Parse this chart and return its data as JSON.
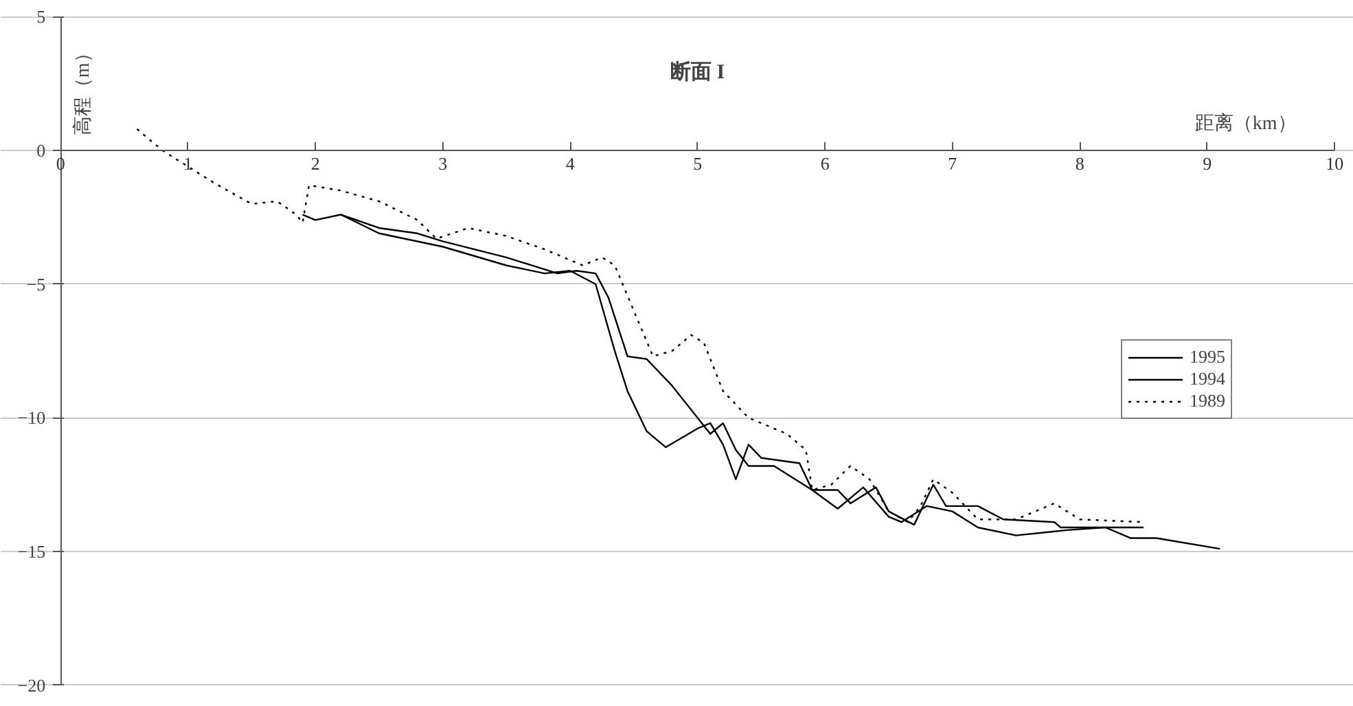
{
  "chart_data": {
    "type": "line",
    "title": "断面 I",
    "xlabel": "距离（km）",
    "ylabel": "高程（m）",
    "xlim": [
      0,
      10
    ],
    "xticks": [
      0,
      1,
      2,
      3,
      4,
      5,
      6,
      7,
      8,
      9,
      10
    ],
    "ylim": [
      -20,
      5
    ],
    "yticks": [
      -20,
      -15,
      -10,
      -5,
      0,
      5
    ],
    "grid": "y",
    "legend": "right",
    "marker": "none",
    "series": [
      {
        "name": "1995",
        "color": "#000000",
        "line_style": "solid",
        "x": [
          1.9,
          2.0,
          2.2,
          2.5,
          2.8,
          3.0,
          3.5,
          3.9,
          4.05,
          4.2,
          4.3,
          4.45,
          4.6,
          4.8,
          5.0,
          5.1,
          5.2,
          5.3,
          5.4,
          5.6,
          5.9,
          6.1,
          6.3,
          6.5,
          6.6,
          6.8,
          7.0,
          7.2,
          7.5,
          7.9,
          8.2,
          8.4,
          8.6,
          9.1
        ],
        "values": [
          -2.4,
          -2.6,
          -2.4,
          -2.9,
          -3.1,
          -3.4,
          -4.0,
          -4.6,
          -4.5,
          -4.6,
          -5.5,
          -7.7,
          -7.8,
          -8.8,
          -10.0,
          -10.6,
          -10.2,
          -11.2,
          -11.8,
          -11.8,
          -12.7,
          -13.4,
          -12.6,
          -13.7,
          -13.9,
          -13.3,
          -13.5,
          -14.1,
          -14.4,
          -14.2,
          -14.1,
          -14.5,
          -14.5,
          -14.9
        ]
      },
      {
        "name": "1994",
        "color": "#000000",
        "line_style": "solid",
        "x": [
          2.2,
          2.5,
          3.0,
          3.5,
          3.8,
          4.0,
          4.2,
          4.35,
          4.45,
          4.6,
          4.75,
          5.0,
          5.1,
          5.2,
          5.3,
          5.4,
          5.5,
          5.8,
          5.9,
          6.1,
          6.2,
          6.4,
          6.5,
          6.7,
          6.85,
          6.95,
          7.2,
          7.4,
          7.8,
          7.85,
          8.5
        ],
        "values": [
          -2.4,
          -3.1,
          -3.6,
          -4.3,
          -4.6,
          -4.5,
          -5.0,
          -7.5,
          -9.0,
          -10.5,
          -11.1,
          -10.4,
          -10.2,
          -11.0,
          -12.3,
          -11.0,
          -11.5,
          -11.7,
          -12.7,
          -12.7,
          -13.2,
          -12.6,
          -13.5,
          -14.0,
          -12.5,
          -13.3,
          -13.3,
          -13.8,
          -13.9,
          -14.1,
          -14.1
        ]
      },
      {
        "name": "1989",
        "color": "#000000",
        "line_style": "dotted",
        "x": [
          0.6,
          0.8,
          1.0,
          1.2,
          1.5,
          1.7,
          1.85,
          1.9,
          1.95,
          2.2,
          2.5,
          2.8,
          2.95,
          3.2,
          3.5,
          3.8,
          4.1,
          4.25,
          4.35,
          4.5,
          4.65,
          4.8,
          4.95,
          5.05,
          5.2,
          5.4,
          5.7,
          5.85,
          5.9,
          6.05,
          6.2,
          6.35,
          6.5,
          6.65,
          6.75,
          6.85,
          7.0,
          7.2,
          7.5,
          7.8,
          8.0,
          8.5
        ],
        "values": [
          0.8,
          0,
          -0.6,
          -1.2,
          -2.0,
          -1.9,
          -2.4,
          -2.7,
          -1.3,
          -1.5,
          -1.9,
          -2.6,
          -3.3,
          -2.9,
          -3.2,
          -3.7,
          -4.3,
          -4.0,
          -4.3,
          -6.0,
          -7.7,
          -7.5,
          -6.9,
          -7.2,
          -9.0,
          -10.0,
          -10.6,
          -11.2,
          -12.7,
          -12.5,
          -11.8,
          -12.3,
          -13.5,
          -13.9,
          -13.3,
          -12.3,
          -12.8,
          -13.8,
          -13.8,
          -13.2,
          -13.8,
          -13.9
        ]
      }
    ]
  }
}
